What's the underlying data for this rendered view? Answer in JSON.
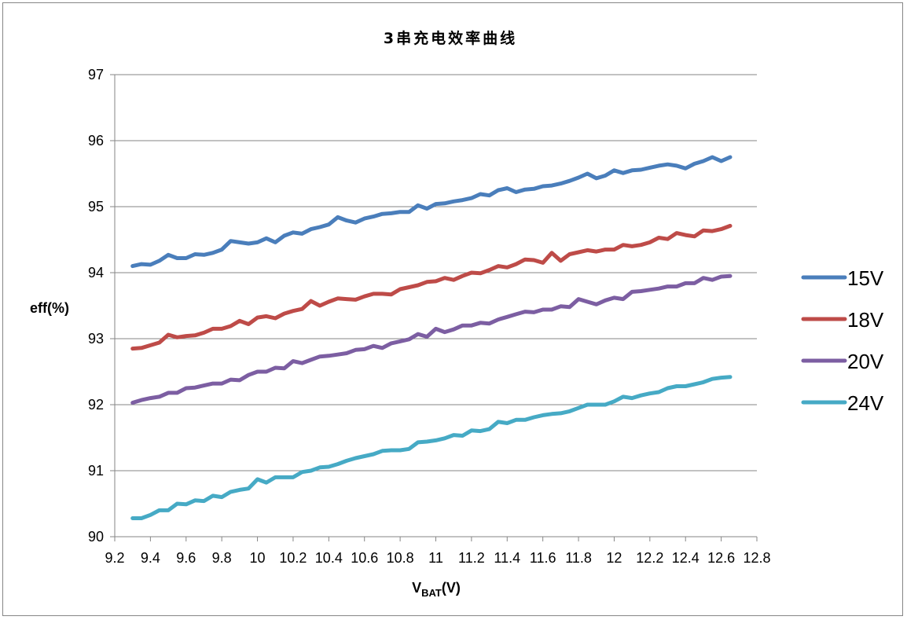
{
  "chart_data": {
    "type": "line",
    "title": "3串充电效率曲线",
    "xlabel_main": "V",
    "xlabel_sub": "BAT",
    "xlabel_tail": "(V)",
    "ylabel": "eff(%)",
    "xlim": [
      9.2,
      12.8
    ],
    "ylim": [
      90,
      97
    ],
    "x_ticks": [
      "9.2",
      "9.4",
      "9.6",
      "9.8",
      "10",
      "10.2",
      "10.4",
      "10.6",
      "10.8",
      "11",
      "11.2",
      "11.4",
      "11.6",
      "11.8",
      "12",
      "12.2",
      "12.4",
      "12.6",
      "12.8"
    ],
    "y_ticks": [
      "90",
      "91",
      "92",
      "93",
      "94",
      "95",
      "96",
      "97"
    ],
    "grid": "horizontal",
    "legend": "right",
    "series": [
      {
        "name": "15V",
        "color": "#4a7ebb",
        "points": [
          [
            9.3,
            94.1
          ],
          [
            9.35,
            94.13
          ],
          [
            9.4,
            94.12
          ],
          [
            9.45,
            94.18
          ],
          [
            9.5,
            94.27
          ],
          [
            9.55,
            94.22
          ],
          [
            9.6,
            94.22
          ],
          [
            9.65,
            94.28
          ],
          [
            9.7,
            94.27
          ],
          [
            9.75,
            94.3
          ],
          [
            9.8,
            94.35
          ],
          [
            9.85,
            94.48
          ],
          [
            9.9,
            94.46
          ],
          [
            9.95,
            94.44
          ],
          [
            10,
            94.46
          ],
          [
            10.05,
            94.52
          ],
          [
            10.1,
            94.46
          ],
          [
            10.15,
            94.56
          ],
          [
            10.2,
            94.61
          ],
          [
            10.25,
            94.59
          ],
          [
            10.3,
            94.66
          ],
          [
            10.35,
            94.69
          ],
          [
            10.4,
            94.73
          ],
          [
            10.45,
            94.84
          ],
          [
            10.5,
            94.79
          ],
          [
            10.55,
            94.76
          ],
          [
            10.6,
            94.82
          ],
          [
            10.65,
            94.85
          ],
          [
            10.7,
            94.89
          ],
          [
            10.75,
            94.9
          ],
          [
            10.8,
            94.92
          ],
          [
            10.85,
            94.92
          ],
          [
            10.9,
            95.02
          ],
          [
            10.95,
            94.97
          ],
          [
            11,
            95.04
          ],
          [
            11.05,
            95.05
          ],
          [
            11.1,
            95.08
          ],
          [
            11.15,
            95.1
          ],
          [
            11.2,
            95.13
          ],
          [
            11.25,
            95.19
          ],
          [
            11.3,
            95.17
          ],
          [
            11.35,
            95.25
          ],
          [
            11.4,
            95.28
          ],
          [
            11.45,
            95.22
          ],
          [
            11.5,
            95.26
          ],
          [
            11.55,
            95.27
          ],
          [
            11.6,
            95.31
          ],
          [
            11.65,
            95.32
          ],
          [
            11.7,
            95.35
          ],
          [
            11.75,
            95.39
          ],
          [
            11.8,
            95.44
          ],
          [
            11.85,
            95.5
          ],
          [
            11.9,
            95.43
          ],
          [
            11.95,
            95.47
          ],
          [
            12,
            95.55
          ],
          [
            12.05,
            95.51
          ],
          [
            12.1,
            95.55
          ],
          [
            12.15,
            95.56
          ],
          [
            12.2,
            95.59
          ],
          [
            12.25,
            95.62
          ],
          [
            12.3,
            95.64
          ],
          [
            12.35,
            95.62
          ],
          [
            12.4,
            95.58
          ],
          [
            12.45,
            95.65
          ],
          [
            12.5,
            95.69
          ],
          [
            12.55,
            95.75
          ],
          [
            12.6,
            95.69
          ],
          [
            12.65,
            95.75
          ]
        ]
      },
      {
        "name": "18V",
        "color": "#be4b48",
        "points": [
          [
            9.3,
            92.85
          ],
          [
            9.35,
            92.86
          ],
          [
            9.4,
            92.9
          ],
          [
            9.45,
            92.94
          ],
          [
            9.5,
            93.06
          ],
          [
            9.55,
            93.02
          ],
          [
            9.6,
            93.04
          ],
          [
            9.65,
            93.05
          ],
          [
            9.7,
            93.09
          ],
          [
            9.75,
            93.15
          ],
          [
            9.8,
            93.15
          ],
          [
            9.85,
            93.19
          ],
          [
            9.9,
            93.27
          ],
          [
            9.95,
            93.22
          ],
          [
            10,
            93.32
          ],
          [
            10.05,
            93.34
          ],
          [
            10.1,
            93.31
          ],
          [
            10.15,
            93.38
          ],
          [
            10.2,
            93.42
          ],
          [
            10.25,
            93.45
          ],
          [
            10.3,
            93.57
          ],
          [
            10.35,
            93.5
          ],
          [
            10.4,
            93.56
          ],
          [
            10.45,
            93.61
          ],
          [
            10.5,
            93.6
          ],
          [
            10.55,
            93.59
          ],
          [
            10.6,
            93.64
          ],
          [
            10.65,
            93.68
          ],
          [
            10.7,
            93.68
          ],
          [
            10.75,
            93.67
          ],
          [
            10.8,
            93.75
          ],
          [
            10.85,
            93.78
          ],
          [
            10.9,
            93.81
          ],
          [
            10.95,
            93.86
          ],
          [
            11,
            93.87
          ],
          [
            11.05,
            93.92
          ],
          [
            11.1,
            93.89
          ],
          [
            11.15,
            93.95
          ],
          [
            11.2,
            94
          ],
          [
            11.25,
            93.99
          ],
          [
            11.3,
            94.04
          ],
          [
            11.35,
            94.1
          ],
          [
            11.4,
            94.08
          ],
          [
            11.45,
            94.13
          ],
          [
            11.5,
            94.2
          ],
          [
            11.55,
            94.19
          ],
          [
            11.6,
            94.15
          ],
          [
            11.65,
            94.3
          ],
          [
            11.7,
            94.18
          ],
          [
            11.75,
            94.28
          ],
          [
            11.8,
            94.31
          ],
          [
            11.85,
            94.34
          ],
          [
            11.9,
            94.32
          ],
          [
            11.95,
            94.35
          ],
          [
            12,
            94.35
          ],
          [
            12.05,
            94.42
          ],
          [
            12.1,
            94.4
          ],
          [
            12.15,
            94.42
          ],
          [
            12.2,
            94.46
          ],
          [
            12.25,
            94.53
          ],
          [
            12.3,
            94.51
          ],
          [
            12.35,
            94.6
          ],
          [
            12.4,
            94.57
          ],
          [
            12.45,
            94.55
          ],
          [
            12.5,
            94.64
          ],
          [
            12.55,
            94.63
          ],
          [
            12.6,
            94.66
          ],
          [
            12.65,
            94.71
          ]
        ]
      },
      {
        "name": "20V",
        "color": "#7c5ea2",
        "points": [
          [
            9.3,
            92.03
          ],
          [
            9.35,
            92.07
          ],
          [
            9.4,
            92.1
          ],
          [
            9.45,
            92.12
          ],
          [
            9.5,
            92.18
          ],
          [
            9.55,
            92.18
          ],
          [
            9.6,
            92.25
          ],
          [
            9.65,
            92.26
          ],
          [
            9.7,
            92.29
          ],
          [
            9.75,
            92.32
          ],
          [
            9.8,
            92.32
          ],
          [
            9.85,
            92.38
          ],
          [
            9.9,
            92.37
          ],
          [
            9.95,
            92.45
          ],
          [
            10,
            92.5
          ],
          [
            10.05,
            92.5
          ],
          [
            10.1,
            92.56
          ],
          [
            10.15,
            92.55
          ],
          [
            10.2,
            92.66
          ],
          [
            10.25,
            92.63
          ],
          [
            10.3,
            92.68
          ],
          [
            10.35,
            92.73
          ],
          [
            10.4,
            92.74
          ],
          [
            10.45,
            92.76
          ],
          [
            10.5,
            92.78
          ],
          [
            10.55,
            92.83
          ],
          [
            10.6,
            92.84
          ],
          [
            10.65,
            92.89
          ],
          [
            10.7,
            92.86
          ],
          [
            10.75,
            92.93
          ],
          [
            10.8,
            92.96
          ],
          [
            10.85,
            92.99
          ],
          [
            10.9,
            93.07
          ],
          [
            10.95,
            93.03
          ],
          [
            11,
            93.15
          ],
          [
            11.05,
            93.1
          ],
          [
            11.1,
            93.14
          ],
          [
            11.15,
            93.2
          ],
          [
            11.2,
            93.2
          ],
          [
            11.25,
            93.24
          ],
          [
            11.3,
            93.23
          ],
          [
            11.35,
            93.29
          ],
          [
            11.4,
            93.33
          ],
          [
            11.45,
            93.37
          ],
          [
            11.5,
            93.41
          ],
          [
            11.55,
            93.4
          ],
          [
            11.6,
            93.44
          ],
          [
            11.65,
            93.44
          ],
          [
            11.7,
            93.49
          ],
          [
            11.75,
            93.48
          ],
          [
            11.8,
            93.6
          ],
          [
            11.85,
            93.56
          ],
          [
            11.9,
            93.52
          ],
          [
            11.95,
            93.58
          ],
          [
            12,
            93.62
          ],
          [
            12.05,
            93.6
          ],
          [
            12.1,
            93.71
          ],
          [
            12.15,
            93.72
          ],
          [
            12.2,
            93.74
          ],
          [
            12.25,
            93.76
          ],
          [
            12.3,
            93.79
          ],
          [
            12.35,
            93.79
          ],
          [
            12.4,
            93.84
          ],
          [
            12.45,
            93.84
          ],
          [
            12.5,
            93.92
          ],
          [
            12.55,
            93.89
          ],
          [
            12.6,
            93.94
          ],
          [
            12.65,
            93.95
          ]
        ]
      },
      {
        "name": "24V",
        "color": "#46aac5",
        "points": [
          [
            9.3,
            90.28
          ],
          [
            9.35,
            90.28
          ],
          [
            9.4,
            90.33
          ],
          [
            9.45,
            90.4
          ],
          [
            9.5,
            90.4
          ],
          [
            9.55,
            90.5
          ],
          [
            9.6,
            90.49
          ],
          [
            9.65,
            90.55
          ],
          [
            9.7,
            90.54
          ],
          [
            9.75,
            90.62
          ],
          [
            9.8,
            90.6
          ],
          [
            9.85,
            90.68
          ],
          [
            9.9,
            90.71
          ],
          [
            9.95,
            90.73
          ],
          [
            10,
            90.87
          ],
          [
            10.05,
            90.82
          ],
          [
            10.1,
            90.9
          ],
          [
            10.15,
            90.9
          ],
          [
            10.2,
            90.9
          ],
          [
            10.25,
            90.98
          ],
          [
            10.3,
            91
          ],
          [
            10.35,
            91.05
          ],
          [
            10.4,
            91.06
          ],
          [
            10.45,
            91.1
          ],
          [
            10.5,
            91.15
          ],
          [
            10.55,
            91.19
          ],
          [
            10.6,
            91.22
          ],
          [
            10.65,
            91.25
          ],
          [
            10.7,
            91.3
          ],
          [
            10.75,
            91.31
          ],
          [
            10.8,
            91.31
          ],
          [
            10.85,
            91.33
          ],
          [
            10.9,
            91.43
          ],
          [
            10.95,
            91.44
          ],
          [
            11,
            91.46
          ],
          [
            11.05,
            91.49
          ],
          [
            11.1,
            91.54
          ],
          [
            11.15,
            91.53
          ],
          [
            11.2,
            91.61
          ],
          [
            11.25,
            91.6
          ],
          [
            11.3,
            91.63
          ],
          [
            11.35,
            91.74
          ],
          [
            11.4,
            91.72
          ],
          [
            11.45,
            91.77
          ],
          [
            11.5,
            91.77
          ],
          [
            11.55,
            91.81
          ],
          [
            11.6,
            91.84
          ],
          [
            11.65,
            91.86
          ],
          [
            11.7,
            91.87
          ],
          [
            11.75,
            91.9
          ],
          [
            11.8,
            91.95
          ],
          [
            11.85,
            92
          ],
          [
            11.9,
            92
          ],
          [
            11.95,
            92
          ],
          [
            12,
            92.05
          ],
          [
            12.05,
            92.12
          ],
          [
            12.1,
            92.1
          ],
          [
            12.15,
            92.14
          ],
          [
            12.2,
            92.17
          ],
          [
            12.25,
            92.19
          ],
          [
            12.3,
            92.25
          ],
          [
            12.35,
            92.28
          ],
          [
            12.4,
            92.28
          ],
          [
            12.45,
            92.31
          ],
          [
            12.5,
            92.34
          ],
          [
            12.55,
            92.39
          ],
          [
            12.6,
            92.41
          ],
          [
            12.65,
            92.42
          ]
        ]
      }
    ]
  }
}
